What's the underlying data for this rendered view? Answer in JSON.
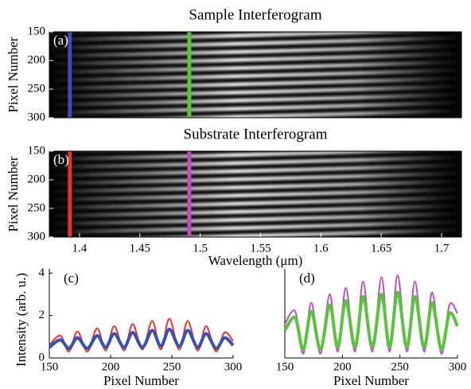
{
  "chart_data": [
    {
      "type": "image",
      "title": "Sample Interferogram",
      "panel_label": "(a)",
      "ylabel": "Pixel Number",
      "ylim": [
        150,
        300
      ],
      "y_inverted": true,
      "yticks": [
        150,
        200,
        250,
        300
      ],
      "xlim": [
        1.375,
        1.7165
      ],
      "markers": [
        {
          "x": 1.392,
          "color": "#3b4fb0"
        },
        {
          "x": 1.491,
          "color": "#5cc040"
        }
      ]
    },
    {
      "type": "image",
      "title": "Substrate Interferogram",
      "panel_label": "(b)",
      "ylabel": "Pixel Number",
      "xlabel": "Wavelength (μm)",
      "ylim": [
        150,
        300
      ],
      "y_inverted": true,
      "yticks": [
        150,
        200,
        250,
        300
      ],
      "xlim": [
        1.375,
        1.7165
      ],
      "xticks": [
        1.4,
        1.45,
        1.5,
        1.55,
        1.6,
        1.65,
        1.7
      ],
      "markers": [
        {
          "x": 1.392,
          "color": "#e8322a"
        },
        {
          "x": 1.491,
          "color": "#c04cc0"
        }
      ]
    },
    {
      "type": "line",
      "panel_label": "(c)",
      "ylabel": "Intensity (arb. u.)",
      "xlabel": "Pixel Number",
      "xlim": [
        150,
        300
      ],
      "xticks": [
        150,
        200,
        250,
        300
      ],
      "ylim": [
        0,
        4.2
      ],
      "yticks": [
        0,
        2,
        4
      ],
      "x": [
        150,
        159,
        166,
        173,
        181,
        189,
        196,
        203,
        211,
        218,
        226,
        234,
        241,
        248,
        256,
        263,
        271,
        278,
        286,
        293,
        300
      ],
      "series": [
        {
          "color": "#e8322a",
          "width": 2,
          "values": [
            0.6,
            1.05,
            0.3,
            1.25,
            0.3,
            1.4,
            0.35,
            1.5,
            0.35,
            1.6,
            0.4,
            1.75,
            0.4,
            1.85,
            0.4,
            1.75,
            0.35,
            1.5,
            0.3,
            1.2,
            0.8
          ]
        },
        {
          "color": "#3b4fb0",
          "width": 4,
          "values": [
            0.5,
            0.85,
            0.45,
            0.95,
            0.45,
            1.05,
            0.5,
            1.15,
            0.5,
            1.2,
            0.5,
            1.3,
            0.55,
            1.35,
            0.55,
            1.3,
            0.5,
            1.15,
            0.45,
            0.95,
            0.6
          ]
        }
      ]
    },
    {
      "type": "line",
      "panel_label": "(d)",
      "xlabel": "Pixel Number",
      "xlim": [
        150,
        300
      ],
      "xticks": [
        150,
        200,
        250,
        300
      ],
      "ylim": [
        0,
        4.2
      ],
      "x": [
        150,
        159,
        166,
        173,
        181,
        189,
        196,
        203,
        211,
        218,
        226,
        234,
        241,
        248,
        256,
        263,
        271,
        278,
        286,
        293,
        300
      ],
      "series": [
        {
          "color": "#c04cc0",
          "width": 2,
          "values": [
            1.6,
            2.2,
            0.2,
            2.6,
            0.2,
            3.0,
            0.3,
            3.3,
            0.3,
            3.6,
            0.3,
            3.8,
            0.3,
            3.9,
            0.3,
            3.6,
            0.3,
            3.1,
            0.2,
            2.5,
            2.1
          ]
        },
        {
          "color": "#5cc040",
          "width": 4,
          "values": [
            1.3,
            1.9,
            0.4,
            2.2,
            0.4,
            2.5,
            0.5,
            2.7,
            0.5,
            2.9,
            0.5,
            3.0,
            0.5,
            3.1,
            0.5,
            2.9,
            0.5,
            2.6,
            0.4,
            2.1,
            1.5
          ]
        }
      ]
    }
  ]
}
